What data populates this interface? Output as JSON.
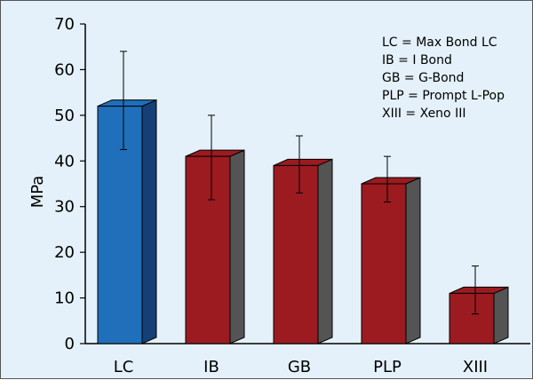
{
  "chart_data": {
    "type": "bar",
    "title": "",
    "xlabel": "",
    "ylabel": "MPa",
    "ylim": [
      0,
      70
    ],
    "yticks": [
      0,
      10,
      20,
      30,
      40,
      50,
      60,
      70
    ],
    "categories": [
      "LC",
      "IB",
      "GB",
      "PLP",
      "XIII"
    ],
    "values": [
      52,
      41,
      39,
      35,
      11
    ],
    "error_low": [
      42.5,
      31.5,
      33,
      31,
      6.5
    ],
    "error_high": [
      64,
      50,
      45.5,
      41,
      17
    ],
    "legend_lines": [
      "LC = Max Bond LC",
      "IB = I Bond",
      "GB = G-Bond",
      "PLP = Prompt L-Pop",
      "XIII = Xeno III"
    ],
    "bar_colors": [
      "#1f6fba",
      "#9b1b20",
      "#9b1b20",
      "#9b1b20",
      "#9b1b20"
    ],
    "bar_side_colors": [
      "#153f77",
      "#545454",
      "#545454",
      "#545454",
      "#545454"
    ],
    "grid": false,
    "legend_position": "top-right"
  }
}
